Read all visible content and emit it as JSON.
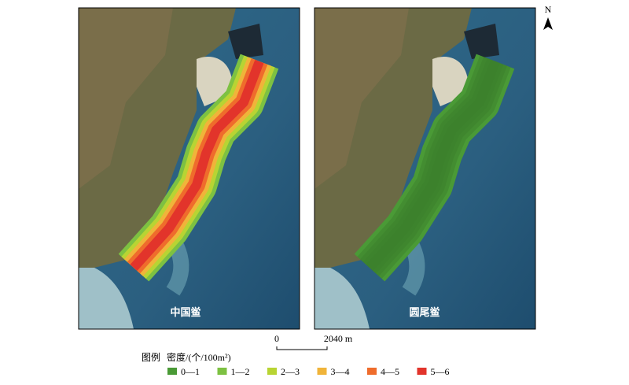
{
  "north": "N",
  "panels": [
    {
      "label": "中国鲎"
    },
    {
      "label": "圆尾鲎"
    }
  ],
  "scale": {
    "start": "0",
    "end": "2040 m"
  },
  "legend": {
    "title": "图例",
    "subtitle": "密度/(个/100m²)",
    "items": [
      {
        "label": "0—1",
        "color": "#4a9a36"
      },
      {
        "label": "1—2",
        "color": "#7dc142"
      },
      {
        "label": "2—3",
        "color": "#b8d433"
      },
      {
        "label": "3—4",
        "color": "#f0b43a"
      },
      {
        "label": "4—5",
        "color": "#ef6c2c"
      },
      {
        "label": "5—6",
        "color": "#e2342b"
      }
    ]
  }
}
